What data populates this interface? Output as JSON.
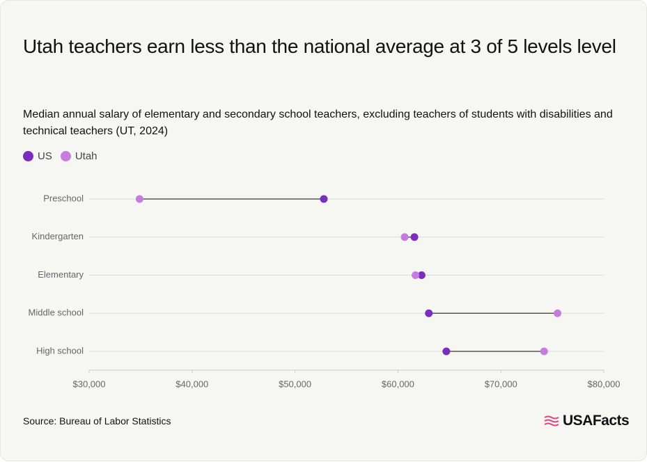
{
  "chart_data": {
    "type": "dumbbell",
    "title": "Utah teachers earn less than the national average at 3 of 5 levels level",
    "subtitle": "Median annual salary of elementary and secondary school teachers, excluding teachers of students with disabilities and technical teachers (UT, 2024)",
    "categories": [
      "Preschool",
      "Kindergarten",
      "Elementary",
      "Middle school",
      "High school"
    ],
    "series": [
      {
        "name": "US",
        "color": "#7b2dbf",
        "values": [
          52800,
          61600,
          62300,
          63000,
          64700
        ]
      },
      {
        "name": "Utah",
        "color": "#c47ddf",
        "values": [
          34900,
          60650,
          61700,
          75500,
          74200
        ]
      }
    ],
    "xlim": [
      30000,
      80000
    ],
    "xticks": [
      {
        "value": 30000,
        "label": "$30,000"
      },
      {
        "value": 40000,
        "label": "$40,000"
      },
      {
        "value": 50000,
        "label": "$50,000"
      },
      {
        "value": 60000,
        "label": "$60,000"
      },
      {
        "value": 70000,
        "label": "$70,000"
      },
      {
        "value": 80000,
        "label": "$80,000"
      }
    ],
    "grid": true,
    "source": "Source: Bureau of Labor Statistics",
    "logo": "USAFacts"
  }
}
